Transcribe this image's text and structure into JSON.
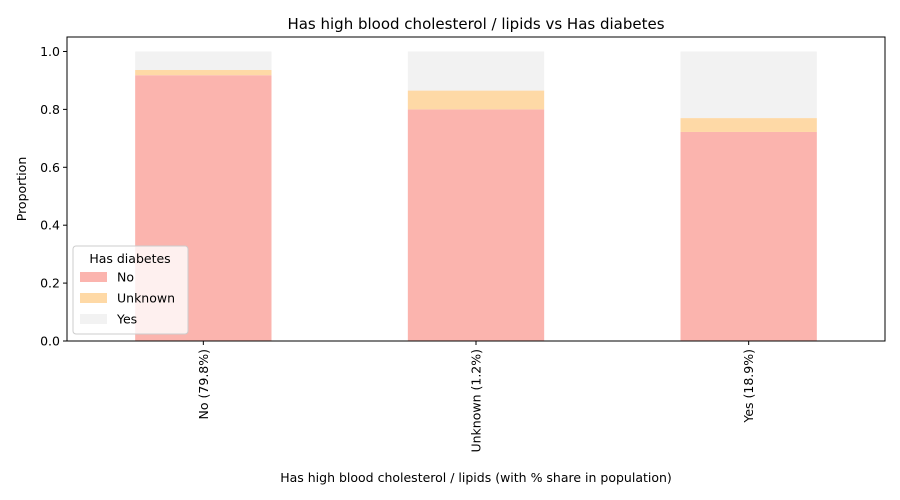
{
  "chart_data": {
    "type": "bar",
    "stacked": true,
    "title": "Has high blood cholesterol / lipids vs Has diabetes",
    "xlabel": "Has high blood cholesterol / lipids (with % share in population)",
    "ylabel": "Proportion",
    "ylim": [
      0,
      1.05
    ],
    "yticks": [
      "0.0",
      "0.2",
      "0.4",
      "0.6",
      "0.8",
      "1.0"
    ],
    "categories": [
      "No (79.8%)",
      "Unknown (1.2%)",
      "Yes (18.9%)"
    ],
    "series": [
      {
        "name": "No",
        "color": "#fbb4ae",
        "values": [
          0.918,
          0.8,
          0.722
        ]
      },
      {
        "name": "Unknown",
        "color": "#fed9a6",
        "values": [
          0.018,
          0.065,
          0.048
        ]
      },
      {
        "name": "Yes",
        "color": "#f2f2f2",
        "values": [
          0.064,
          0.135,
          0.23
        ]
      }
    ],
    "legend": {
      "title": "Has diabetes",
      "position": "lower-left"
    },
    "grid": false
  }
}
